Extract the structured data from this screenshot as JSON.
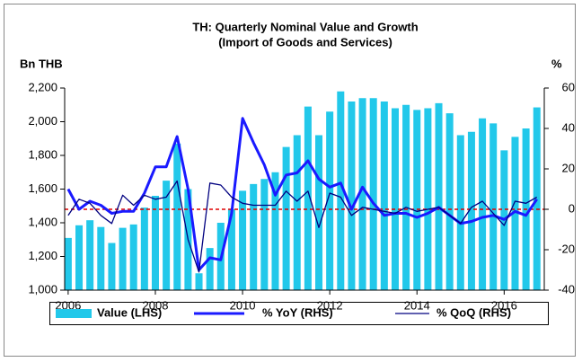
{
  "chart_data": {
    "type": "bar",
    "title": "TH: Quarterly Nominal Value and Growth",
    "subtitle": "(Import of Goods and Services)",
    "y_label": "Bn THB",
    "y2_label": "%",
    "x": [
      2006,
      2006.25,
      2006.5,
      2006.75,
      2007,
      2007.25,
      2007.5,
      2007.75,
      2008,
      2008.25,
      2008.5,
      2008.75,
      2009,
      2009.25,
      2009.5,
      2009.75,
      2010,
      2010.25,
      2010.5,
      2010.75,
      2011,
      2011.25,
      2011.5,
      2011.75,
      2012,
      2012.25,
      2012.5,
      2012.75,
      2013,
      2013.25,
      2013.5,
      2013.75,
      2014,
      2014.25,
      2014.5,
      2014.75,
      2015,
      2015.25,
      2015.5,
      2015.75,
      2016,
      2016.25,
      2016.5,
      2016.75
    ],
    "xlim": [
      2005.92,
      2016.92
    ],
    "xticks": [
      2006,
      2008,
      2010,
      2012,
      2014,
      2016
    ],
    "ylim": [
      1000,
      2200
    ],
    "yticks": [
      {
        "value": 1000,
        "label": "1,000"
      },
      {
        "value": 1200,
        "label": "1,200"
      },
      {
        "value": 1400,
        "label": "1,400"
      },
      {
        "value": 1600,
        "label": "1,600"
      },
      {
        "value": 1800,
        "label": "1,800"
      },
      {
        "value": 2000,
        "label": "2,000"
      },
      {
        "value": 2200,
        "label": "2,200"
      }
    ],
    "y2lim": [
      -40,
      60
    ],
    "y2ticks": [
      -40,
      -20,
      0,
      20,
      40,
      60
    ],
    "reference_line": {
      "value": 0,
      "axis": "y2",
      "color": "#e00000"
    },
    "grid": false,
    "legend": "bottom",
    "series": [
      {
        "name": "Value (LHS)",
        "type": "bar",
        "color": "#22c8ea",
        "values": [
          1310,
          1385,
          1415,
          1375,
          1280,
          1370,
          1390,
          1490,
          1560,
          1650,
          1870,
          1600,
          1100,
          1250,
          1400,
          1480,
          1590,
          1630,
          1660,
          1700,
          1850,
          1920,
          2090,
          1920,
          2060,
          2180,
          2120,
          2140,
          2140,
          2120,
          2080,
          2100,
          2070,
          2080,
          2110,
          2050,
          1920,
          1940,
          2020,
          1990,
          1830,
          1910,
          1960,
          2085
        ]
      },
      {
        "name": "% YoY (RHS)",
        "type": "line",
        "axis": "y2",
        "color": "#1a1aff",
        "width": 3,
        "values": [
          10,
          0,
          4,
          2,
          -2,
          -1,
          -1,
          8,
          21,
          21,
          36,
          10,
          -30,
          -24,
          -25,
          -2,
          45,
          33,
          22,
          7,
          17,
          18,
          24,
          15,
          11,
          13,
          0,
          11,
          3,
          -3,
          -2,
          -2,
          -4,
          -2,
          1,
          -3,
          -7,
          -6,
          -4,
          -3,
          -5,
          -1,
          -3,
          5
        ]
      },
      {
        "name": "% QoQ (RHS)",
        "type": "line",
        "axis": "y2",
        "color": "#000080",
        "width": 1.3,
        "values": [
          -3,
          5,
          3,
          -3,
          -7,
          7,
          2,
          7,
          5,
          6,
          14,
          -15,
          -31,
          13,
          12,
          6,
          3,
          2,
          2,
          2,
          9,
          4,
          9,
          -9,
          8,
          6,
          -3,
          1,
          0,
          -1,
          -2,
          1,
          -1,
          0,
          1,
          -3,
          -7,
          1,
          4,
          -2,
          -8,
          4,
          3,
          6
        ]
      }
    ]
  }
}
